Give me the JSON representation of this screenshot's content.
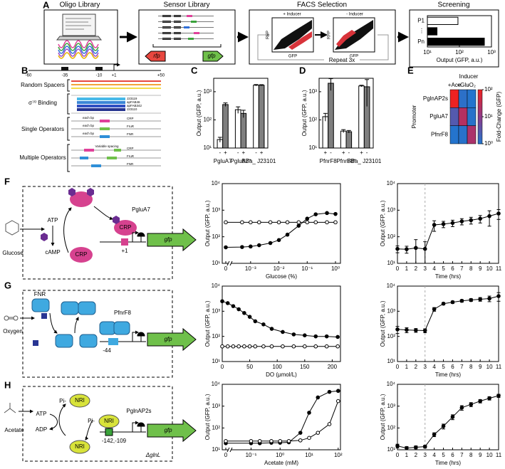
{
  "figure": {
    "panel_labels": [
      "A",
      "B",
      "C",
      "D",
      "E",
      "F",
      "G",
      "H"
    ],
    "A": {
      "titles": [
        "Oligo Library",
        "Sensor Library",
        "FACS Selection",
        "Screening"
      ],
      "plus_inducer": "+ Inducer",
      "minus_inducer": "- Inducer",
      "rfp_axis": "RFP",
      "gfp_axis": "GFP",
      "repeat": "Repeat 3x",
      "rfp_gene": "rfp",
      "gfp_gene": "gfp"
    },
    "B": {
      "positions": [
        "-60",
        "-35",
        "-10",
        "+1",
        "+50"
      ],
      "rows": [
        "Random Spacers",
        "σ⁷⁰ Binding",
        "Single Operators",
        "Multiple Operators"
      ],
      "promoters": [
        "J23119",
        "apFAB46",
        "apFAB342",
        "J23110"
      ],
      "each_bp": "each bp",
      "single_ops": [
        "CRP",
        "FruR",
        "FNR"
      ],
      "variable": "Variable spacing",
      "multi_ops": [
        "CRP",
        "FruR",
        "FNR"
      ]
    },
    "F": {
      "inducer": "Glucose",
      "atp": "ATP",
      "camp": "cAMP",
      "tf": "CRP",
      "promoter": "PgluA7",
      "site": "+1",
      "gene": "gfp"
    },
    "G": {
      "inducer": "Oxygen",
      "tf": "FNR",
      "promoter": "PfnrF8",
      "site": "-44",
      "gene": "gfp"
    },
    "H": {
      "inducer": "Acetate",
      "atp": "ATP",
      "adp": "ADP",
      "pi": "Pi-",
      "tf": "NRI",
      "promoter": "PglnAP2s",
      "site": "-142,-109",
      "strain": "ΔglnL",
      "gene": "gfp"
    }
  },
  "chart_data": [
    {
      "type": "hbar",
      "categories": [
        "P1",
        "⋮",
        "Pn"
      ],
      "values": [
        90,
        20,
        600
      ],
      "colors": [
        "#ffffff",
        "#000000",
        "#000000"
      ],
      "xlog": true,
      "xlim": [
        10,
        1000
      ],
      "xticks": [
        {
          "value": 10,
          "label": "10¹"
        },
        {
          "value": 100,
          "label": "10²"
        },
        {
          "value": 1000,
          "label": "10³"
        }
      ],
      "x_label": "Output (GFP, a.u.)"
    },
    {
      "type": "bar",
      "y_label": "Output (GFP, a.u.)",
      "categories": [
        "PgluA7",
        "PgluA7*",
        "BBa_ J23101"
      ],
      "series": [
        {
          "name": "-",
          "color": "#ffffff",
          "values": [
            20,
            230,
            1700
          ],
          "errors": [
            4,
            60,
            100
          ]
        },
        {
          "name": "+",
          "color": "#7f7f7f",
          "values": [
            350,
            170,
            1700
          ],
          "errors": [
            50,
            50,
            80
          ]
        }
      ],
      "ylog": true,
      "ylim": [
        10,
        3000
      ],
      "yticks": [
        {
          "value": 10,
          "label": "10¹"
        },
        {
          "value": 100,
          "label": "10²"
        },
        {
          "value": 1000,
          "label": "10³"
        }
      ]
    },
    {
      "type": "bar",
      "y_label": "Output (GFP, a.u.)",
      "categories": [
        "PfnrF8",
        "PfnrF8*",
        "BBa_ J23101"
      ],
      "series": [
        {
          "name": "+",
          "color": "#ffffff",
          "values": [
            130,
            40,
            1600
          ],
          "errors": [
            40,
            5,
            100
          ]
        },
        {
          "name": "-",
          "color": "#7f7f7f",
          "values": [
            2000,
            38,
            1500
          ],
          "errors": [
            900,
            4,
            1200
          ]
        }
      ],
      "ylog": true,
      "ylim": [
        10,
        3000
      ],
      "yticks": [
        {
          "value": 10,
          "label": "10¹"
        },
        {
          "value": 100,
          "label": "10²"
        },
        {
          "value": 1000,
          "label": "10³"
        }
      ]
    },
    {
      "type": "heatmap",
      "title": "Inducer",
      "y_label": "Promoter",
      "columns": [
        "+Ace",
        "+Glu",
        "-O₂"
      ],
      "rows": [
        "PglnAP2s",
        "PgluA7",
        "PfnrF8"
      ],
      "values": [
        [
          100,
          1.3,
          1.1
        ],
        [
          3,
          25,
          1.2
        ],
        [
          1.1,
          1.2,
          20
        ]
      ],
      "clim": [
        1,
        100
      ],
      "cticks": [
        {
          "value": 1,
          "label": "10⁰"
        },
        {
          "value": 10,
          "label": "10¹"
        },
        {
          "value": 100,
          "label": "10²"
        }
      ],
      "colorbar_label": "Fold-Change (GFP)",
      "colors": [
        "#1f77d0",
        "#8e3a8a",
        "#ee2222"
      ]
    },
    {
      "type": "line",
      "x_label": "Glucose (%)",
      "y_label": "Output (GFP, a.u.)",
      "xlog": true,
      "xlim": [
        0,
        1.5
      ],
      "xticks": [
        0,
        {
          "value": 0.001,
          "label": "10⁻³"
        },
        {
          "value": 0.01,
          "label": "10⁻²"
        },
        {
          "value": 0.1,
          "label": "10⁻¹"
        },
        {
          "value": 1,
          "label": "10⁰"
        }
      ],
      "ylog": true,
      "ylim": [
        10,
        10000
      ],
      "yticks": [
        {
          "value": 10,
          "label": "10¹"
        },
        {
          "value": 100,
          "label": "10²"
        },
        {
          "value": 1000,
          "label": "10³"
        },
        {
          "value": 10000,
          "label": "10⁴"
        }
      ],
      "x": [
        0,
        0.0005,
        0.001,
        0.002,
        0.005,
        0.01,
        0.02,
        0.05,
        0.1,
        0.2,
        0.5,
        1
      ],
      "series": [
        {
          "color": "#000000",
          "marker": "filled",
          "values": [
            40,
            41,
            43,
            48,
            58,
            75,
            120,
            260,
            480,
            700,
            780,
            720
          ]
        },
        {
          "color": "#000000",
          "marker": "open",
          "values": [
            350,
            350,
            350,
            350,
            350,
            350,
            350,
            350,
            350,
            350,
            350,
            350
          ]
        }
      ]
    },
    {
      "type": "line",
      "x_label": "Time (hrs)",
      "y_label": "Output (GFP, a.u.)",
      "xlim": [
        0,
        11
      ],
      "xticks": [
        0,
        1,
        2,
        3,
        4,
        5,
        6,
        7,
        8,
        9,
        10,
        11
      ],
      "ylog": true,
      "ylim": [
        10,
        10000
      ],
      "yticks": [
        {
          "value": 10,
          "label": "10¹"
        },
        {
          "value": 100,
          "label": "10²"
        },
        {
          "value": 1000,
          "label": "10³"
        },
        {
          "value": 10000,
          "label": "10⁴"
        }
      ],
      "x": [
        0,
        1,
        2,
        3,
        4,
        5,
        6,
        7,
        8,
        9,
        10,
        11
      ],
      "vline": 3,
      "series": [
        {
          "color": "#000000",
          "marker": "filled",
          "values": [
            35,
            34,
            38,
            35,
            280,
            300,
            330,
            380,
            420,
            480,
            600,
            750
          ],
          "errors": [
            10,
            10,
            40,
            30,
            120,
            80,
            90,
            100,
            120,
            150,
            350,
            300
          ]
        }
      ]
    },
    {
      "type": "line",
      "x_label": "DO (μmol/L)",
      "y_label": "Output (GFP, a.u.)",
      "xlim": [
        0,
        215
      ],
      "xticks": [
        0,
        50,
        100,
        150,
        200
      ],
      "ylog": true,
      "ylim": [
        10,
        10000
      ],
      "yticks": [
        {
          "value": 10,
          "label": "10¹"
        },
        {
          "value": 100,
          "label": "10²"
        },
        {
          "value": 1000,
          "label": "10³"
        },
        {
          "value": 10000,
          "label": "10⁴"
        }
      ],
      "x": [
        0,
        10,
        20,
        30,
        40,
        50,
        60,
        75,
        90,
        110,
        130,
        150,
        170,
        190,
        210
      ],
      "series": [
        {
          "color": "#000000",
          "marker": "filled",
          "values": [
            2500,
            2100,
            1600,
            1200,
            850,
            600,
            400,
            300,
            200,
            150,
            120,
            110,
            100,
            100,
            95
          ]
        },
        {
          "color": "#000000",
          "marker": "open",
          "values": [
            40,
            40,
            40,
            40,
            40,
            40,
            40,
            40,
            40,
            40,
            40,
            40,
            40,
            40,
            40
          ]
        }
      ]
    },
    {
      "type": "line",
      "x_label": "Time (hrs)",
      "y_label": "Output (GFP, a.u.)",
      "xlim": [
        0,
        11
      ],
      "xticks": [
        0,
        1,
        2,
        3,
        4,
        5,
        6,
        7,
        8,
        9,
        10,
        11
      ],
      "ylog": true,
      "ylim": [
        10,
        10000
      ],
      "yticks": [
        {
          "value": 10,
          "label": "10¹"
        },
        {
          "value": 100,
          "label": "10²"
        },
        {
          "value": 1000,
          "label": "10³"
        },
        {
          "value": 10000,
          "label": "10⁴"
        }
      ],
      "x": [
        0,
        1,
        2,
        3,
        4,
        5,
        6,
        7,
        8,
        9,
        10,
        11
      ],
      "vline": 3,
      "series": [
        {
          "color": "#000000",
          "marker": "filled",
          "values": [
            190,
            180,
            175,
            170,
            1200,
            2000,
            2300,
            2600,
            2800,
            3000,
            3200,
            4000
          ],
          "errors": [
            60,
            40,
            30,
            30,
            200,
            200,
            250,
            300,
            350,
            500,
            800,
            1500
          ]
        }
      ]
    },
    {
      "type": "line",
      "x_label": "Acetate (mM)",
      "y_label": "Output (GFP, a.u.)",
      "xlog": true,
      "xlim": [
        0,
        120
      ],
      "xticks": [
        0,
        {
          "value": 0.1,
          "label": "10⁻¹"
        },
        {
          "value": 1,
          "label": "10⁰"
        },
        {
          "value": 10,
          "label": "10¹"
        },
        {
          "value": 100,
          "label": "10²"
        }
      ],
      "ylog": true,
      "ylim": [
        10,
        10000
      ],
      "yticks": [
        {
          "value": 10,
          "label": "10¹"
        },
        {
          "value": 100,
          "label": "10²"
        },
        {
          "value": 1000,
          "label": "10³"
        },
        {
          "value": 10000,
          "label": "10⁴"
        }
      ],
      "x": [
        0,
        0.1,
        0.2,
        0.5,
        1,
        2,
        5,
        10,
        20,
        50,
        100
      ],
      "series": [
        {
          "color": "#000000",
          "marker": "filled",
          "values": [
            20,
            20,
            20,
            21,
            21,
            22,
            60,
            500,
            2500,
            4500,
            5000
          ]
        },
        {
          "color": "#000000",
          "marker": "open",
          "values": [
            25,
            25,
            25,
            25,
            25,
            25,
            27,
            35,
            60,
            150,
            1700
          ]
        }
      ]
    },
    {
      "type": "line",
      "x_label": "Time (hrs)",
      "y_label": "Output (GFP, a.u.)",
      "xlim": [
        0,
        11
      ],
      "xticks": [
        0,
        1,
        2,
        3,
        4,
        5,
        6,
        7,
        8,
        9,
        10,
        11
      ],
      "ylog": true,
      "ylim": [
        10,
        10000
      ],
      "yticks": [
        {
          "value": 10,
          "label": "10¹"
        },
        {
          "value": 100,
          "label": "10²"
        },
        {
          "value": 1000,
          "label": "10³"
        },
        {
          "value": 10000,
          "label": "10⁴"
        }
      ],
      "x": [
        0,
        1,
        2,
        3,
        4,
        5,
        6,
        7,
        8,
        9,
        10,
        11
      ],
      "vline": 3,
      "series": [
        {
          "color": "#000000",
          "marker": "filled",
          "values": [
            15,
            12,
            13,
            14,
            50,
            120,
            320,
            850,
            1200,
            1700,
            2300,
            3000
          ],
          "errors": [
            3,
            2,
            2,
            2,
            10,
            30,
            80,
            200,
            250,
            300,
            400,
            500
          ]
        }
      ]
    }
  ]
}
